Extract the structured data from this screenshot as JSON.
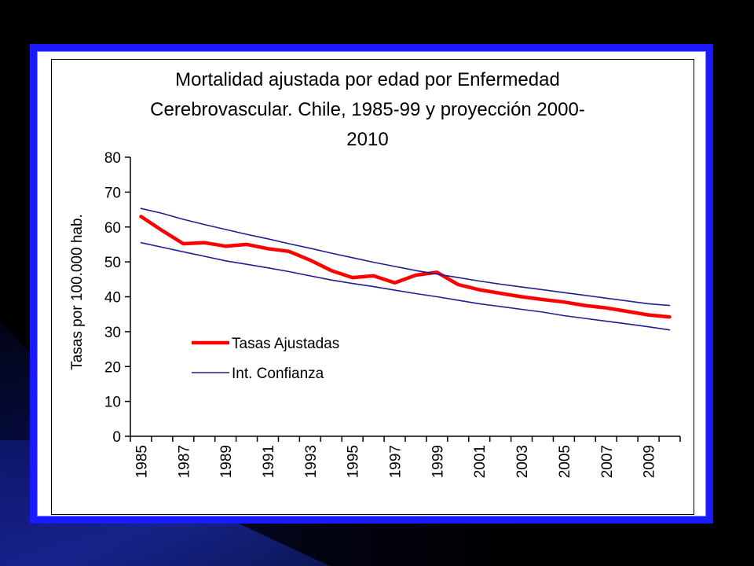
{
  "colors": {
    "background": "#000000",
    "frame": "#1a1aff",
    "series_main": "#ff0000",
    "series_ci": "#1f1f8f"
  },
  "chart_data": {
    "type": "line",
    "title_lines": [
      "Mortalidad ajustada por edad por Enfermedad",
      "Cerebrovascular.  Chile, 1985-99 y proyección 2000-",
      "2010"
    ],
    "xlabel": "",
    "ylabel": "Tasas por 100.000 hab.",
    "ylim": [
      0,
      80
    ],
    "yticks": [
      0,
      10,
      20,
      30,
      40,
      50,
      60,
      70,
      80
    ],
    "x": [
      1985,
      1986,
      1987,
      1988,
      1989,
      1990,
      1991,
      1992,
      1993,
      1994,
      1995,
      1996,
      1997,
      1998,
      1999,
      2000,
      2001,
      2002,
      2003,
      2004,
      2005,
      2006,
      2007,
      2008,
      2009,
      2010
    ],
    "xtick_labels": [
      "1985",
      "1987",
      "1989",
      "1991",
      "1993",
      "1995",
      "1997",
      "1999",
      "2001",
      "2003",
      "2005",
      "2007",
      "2009"
    ],
    "series": [
      {
        "name": "Tasas Ajustadas",
        "role": "main",
        "values": [
          63,
          59,
          55.2,
          55.5,
          54.5,
          55,
          53.8,
          53,
          50.5,
          47.5,
          45.5,
          46,
          44,
          46.2,
          47,
          43.5,
          42,
          41,
          40,
          39.2,
          38.5,
          37.5,
          36.8,
          35.8,
          34.8,
          34.2
        ]
      },
      {
        "name": "Int. Confianza",
        "role": "upper",
        "values": [
          65.3,
          63.9,
          62.2,
          60.7,
          59.3,
          57.9,
          56.6,
          55.2,
          53.9,
          52.5,
          51.2,
          49.9,
          48.7,
          47.5,
          46.5,
          45.5,
          44.5,
          43.6,
          42.8,
          42,
          41.2,
          40.4,
          39.6,
          38.8,
          38,
          37.5
        ]
      },
      {
        "name": "",
        "role": "lower",
        "values": [
          55.5,
          54.2,
          52.9,
          51.6,
          50.3,
          49.3,
          48.3,
          47.2,
          46,
          44.8,
          43.8,
          42.9,
          41.9,
          40.9,
          40,
          39,
          38,
          37.2,
          36.4,
          35.6,
          34.6,
          33.8,
          33,
          32.2,
          31.4,
          30.5
        ]
      }
    ],
    "legend": [
      {
        "label": "Tasas Ajustadas",
        "series": "main"
      },
      {
        "label": "Int. Confianza",
        "series": "upper"
      }
    ],
    "legend_position": "inside-left",
    "grid": false
  }
}
